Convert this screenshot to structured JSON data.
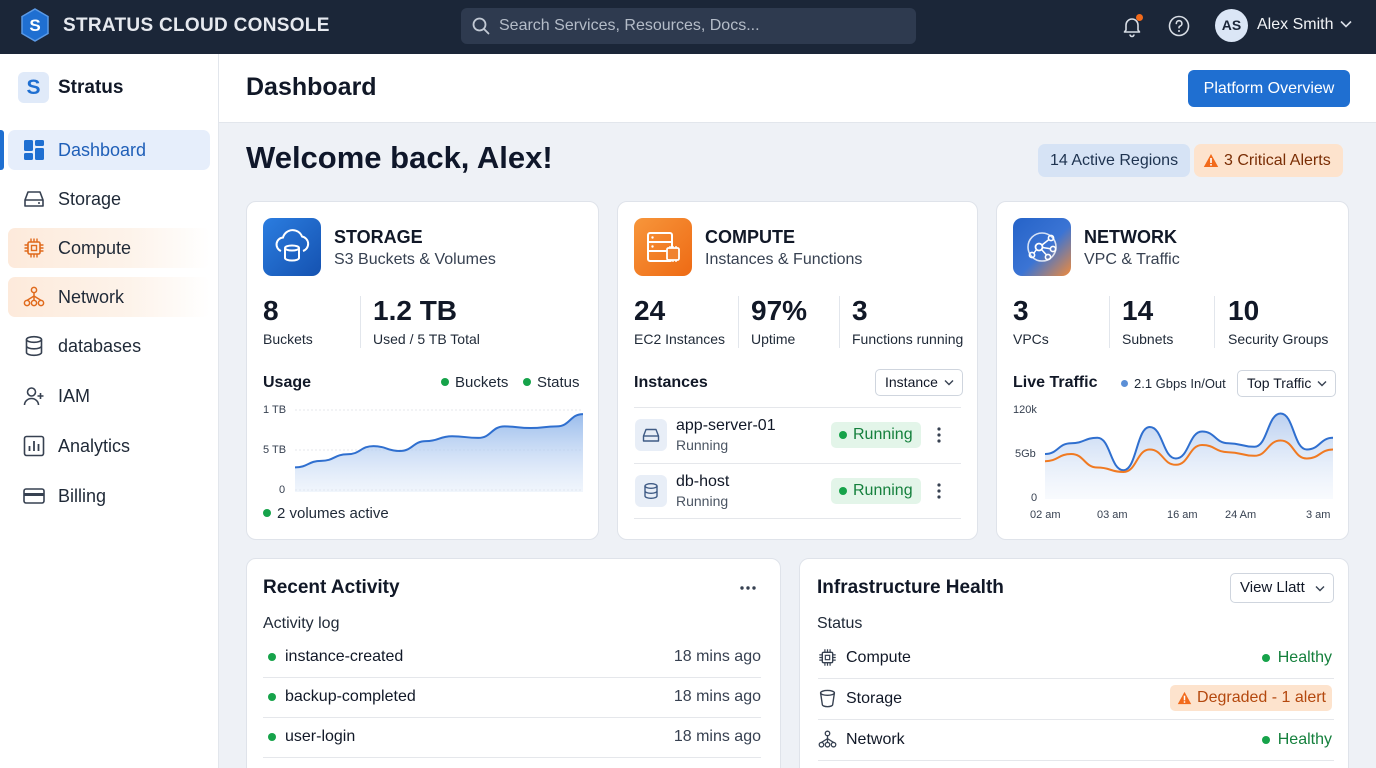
{
  "topbar": {
    "title": "STRATUS CLOUD CONSOLE",
    "search_placeholder": "Search Services, Resources, Docs...",
    "user_initials": "AS",
    "user_name": "Alex Smith"
  },
  "sidebar": {
    "logo_letter": "S",
    "app_name": "Stratus",
    "items": [
      {
        "label": "Dashboard",
        "icon": "dashboard-icon"
      },
      {
        "label": "Storage",
        "icon": "storage-icon"
      },
      {
        "label": "Compute",
        "icon": "chip-icon"
      },
      {
        "label": "Network",
        "icon": "network-icon"
      },
      {
        "label": "databases",
        "icon": "database-icon"
      },
      {
        "label": "IAM",
        "icon": "user-plus-icon"
      },
      {
        "label": "Analytics",
        "icon": "bar-chart-icon"
      },
      {
        "label": "Billing",
        "icon": "credit-card-icon"
      }
    ]
  },
  "header": {
    "title": "Dashboard",
    "primary_button": "Platform Overview"
  },
  "welcome": {
    "text": "Welcome back, Alex!",
    "regions_pill": "14 Active Regions",
    "alerts_pill": "3 Critical Alerts"
  },
  "storage": {
    "title": "STORAGE",
    "subtitle": "S3 Buckets & Volumes",
    "stats": [
      {
        "value": "8",
        "label": "Buckets"
      },
      {
        "value": "1.2 TB",
        "label": "Used / 5 TB Total"
      }
    ],
    "usage_title": "Usage",
    "legend": [
      "Buckets",
      "Status"
    ],
    "footer": "2 volumes active",
    "chart_data": {
      "type": "area",
      "title": "Usage",
      "y_ticks": [
        "1 TB",
        "5 TB",
        "0"
      ],
      "series": [
        {
          "name": "Buckets",
          "values": [
            0.3,
            0.38,
            0.46,
            0.56,
            0.5,
            0.62,
            0.68,
            0.66,
            0.8,
            0.78,
            0.8,
            0.95
          ]
        }
      ]
    }
  },
  "compute": {
    "title": "COMPUTE",
    "subtitle": "Instances & Functions",
    "stats": [
      {
        "value": "24",
        "label": "EC2 Instances"
      },
      {
        "value": "97%",
        "label": "Uptime"
      },
      {
        "value": "3",
        "label": "Functions running"
      }
    ],
    "instances_title": "Instances",
    "instances_filter": "Instance",
    "instances": [
      {
        "name": "app-server-01",
        "state": "Running",
        "status": "Running"
      },
      {
        "name": "db-host",
        "state": "Running",
        "status": "Running"
      }
    ]
  },
  "network": {
    "title": "NETWORK",
    "subtitle": "VPC & Traffic",
    "stats": [
      {
        "value": "3",
        "label": "VPCs"
      },
      {
        "value": "14",
        "label": "Subnets"
      },
      {
        "value": "10",
        "label": "Security Groups"
      }
    ],
    "traffic_title": "Live Traffic",
    "traffic_rate": "2.1 Gbps In/Out",
    "traffic_filter": "Top Traffic",
    "chart_data": {
      "type": "line",
      "title": "Live Traffic",
      "y_ticks": [
        "120k",
        "5Gb",
        "0"
      ],
      "x_ticks": [
        "02 am",
        "03 am",
        "16 am",
        "24 Am",
        "3 am"
      ],
      "series": [
        {
          "values": [
            0.5,
            0.62,
            0.68,
            0.32,
            0.8,
            0.45,
            0.75,
            0.62,
            0.58,
            0.95,
            0.55,
            0.68
          ]
        },
        {
          "values": [
            0.42,
            0.5,
            0.35,
            0.3,
            0.55,
            0.38,
            0.6,
            0.52,
            0.48,
            0.65,
            0.45,
            0.55
          ]
        }
      ]
    }
  },
  "activity": {
    "title": "Recent Activity",
    "subtitle": "Activity log",
    "rows": [
      {
        "event": "instance-created",
        "time": "18 mins ago"
      },
      {
        "event": "backup-completed",
        "time": "18 mins ago"
      },
      {
        "event": "user-login",
        "time": "18 mins ago"
      }
    ]
  },
  "health": {
    "title": "Infrastructure Health",
    "filter": "View Llatt",
    "subtitle": "Status",
    "rows": [
      {
        "name": "Compute",
        "status": "Healthy"
      },
      {
        "name": "Storage",
        "status": "Degraded - 1 alert"
      },
      {
        "name": "Network",
        "status": "Healthy"
      }
    ]
  },
  "colors": {
    "topbar": "#1b2638",
    "primary": "#1f6fd1",
    "accent_orange": "#f26a1b",
    "success": "#16a34a"
  }
}
